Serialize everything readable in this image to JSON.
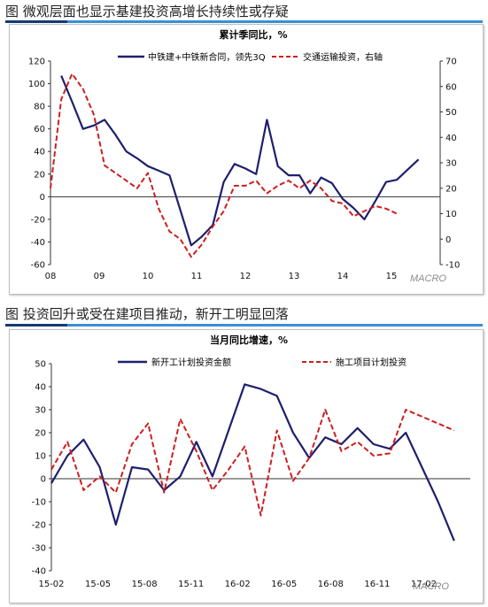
{
  "captions": [
    "图 微观层面也显示基建投资高增长持续性或存疑",
    "图 投资回升或受在建项目推动，新开工明显回落"
  ],
  "watermarks": [
    "MACRO",
    "MACRO"
  ],
  "colors": {
    "navy": "#1f1f6e",
    "red": "#cc1f1f",
    "accent": "#3a8fd6"
  },
  "chart_data": [
    {
      "type": "line",
      "title": "累计季同比，%",
      "x_ticks": [
        "08",
        "09",
        "10",
        "11",
        "12",
        "13",
        "14",
        "15"
      ],
      "x_range": [
        0,
        36
      ],
      "ylim": [
        -60,
        120
      ],
      "y_ticks": [
        -60,
        -40,
        -20,
        0,
        20,
        40,
        60,
        80,
        100,
        120
      ],
      "y2lim": [
        -10,
        70
      ],
      "y2_ticks": [
        -10,
        0,
        10,
        20,
        30,
        40,
        50,
        60,
        70
      ],
      "legend_position": "top",
      "series": [
        {
          "name": "中铁建+中铁新合同，领先3Q",
          "axis": "left",
          "style": "solid",
          "x": [
            1,
            2,
            3,
            4,
            5,
            6,
            7,
            8,
            9,
            10,
            11,
            12,
            13,
            14,
            15,
            16,
            17,
            18,
            19,
            20,
            21,
            22,
            23,
            24,
            25,
            26,
            27,
            28,
            29,
            30,
            31,
            32,
            33,
            34
          ],
          "y": [
            107,
            84,
            60,
            63,
            68,
            55,
            40,
            34,
            27,
            23,
            19,
            -12,
            -43,
            -35,
            -25,
            13,
            29,
            25,
            20,
            68,
            27,
            19,
            19,
            3,
            17,
            12,
            -2,
            -10,
            -20,
            -4,
            13,
            15,
            24,
            33
          ]
        },
        {
          "name": "交通运输投资，右轴",
          "axis": "right",
          "style": "dashed",
          "x": [
            0,
            1,
            2,
            3,
            4,
            5,
            6,
            7,
            8,
            9,
            10,
            11,
            12,
            13,
            14,
            15,
            16,
            17,
            18,
            19,
            20,
            21,
            22,
            23,
            24,
            25,
            26,
            27,
            28,
            29,
            30,
            31,
            32,
            33
          ],
          "y": [
            20,
            55,
            65,
            59,
            49,
            29,
            26,
            23,
            20,
            26,
            12,
            3,
            0,
            -7,
            -2,
            5,
            11,
            21,
            21,
            23,
            18,
            21,
            23,
            20,
            23,
            20,
            15,
            14,
            9,
            11,
            13,
            12,
            10,
            null
          ]
        }
      ]
    },
    {
      "type": "line",
      "title": "当月同比增速，%",
      "x_ticks": [
        "15-02",
        "15-05",
        "15-08",
        "15-11",
        "16-02",
        "16-05",
        "16-08",
        "16-11",
        "17-02"
      ],
      "x_range": [
        0,
        26
      ],
      "ylim": [
        -40,
        50
      ],
      "y_ticks": [
        -40,
        -30,
        -20,
        -10,
        0,
        10,
        20,
        30,
        40,
        50
      ],
      "legend_position": "top",
      "series": [
        {
          "name": "新开工计划投资金额",
          "style": "solid",
          "x": [
            0,
            1,
            2,
            3,
            4,
            5,
            6,
            7,
            8,
            9,
            10,
            11,
            12,
            13,
            14,
            15,
            16,
            17,
            18,
            19,
            20,
            21,
            22,
            23,
            24,
            25
          ],
          "y": [
            -2,
            10,
            17,
            5,
            -20,
            5,
            4,
            -5,
            1,
            16,
            1,
            21,
            41,
            39,
            36,
            20,
            9,
            18,
            15,
            22,
            15,
            13,
            20,
            5,
            -10,
            -27
          ]
        },
        {
          "name": "施工项目计划投资",
          "style": "dashed",
          "x": [
            0,
            1,
            2,
            3,
            4,
            5,
            6,
            7,
            8,
            9,
            10,
            11,
            12,
            13,
            14,
            15,
            16,
            17,
            18,
            19,
            20,
            21,
            22,
            23,
            24,
            25
          ],
          "y": [
            4,
            16,
            -5,
            1,
            -6,
            15,
            24,
            -6,
            26,
            12,
            -5,
            4,
            14,
            -16,
            21,
            -1,
            9,
            30,
            12,
            16,
            10,
            11,
            30,
            27,
            24,
            21
          ]
        }
      ]
    }
  ]
}
